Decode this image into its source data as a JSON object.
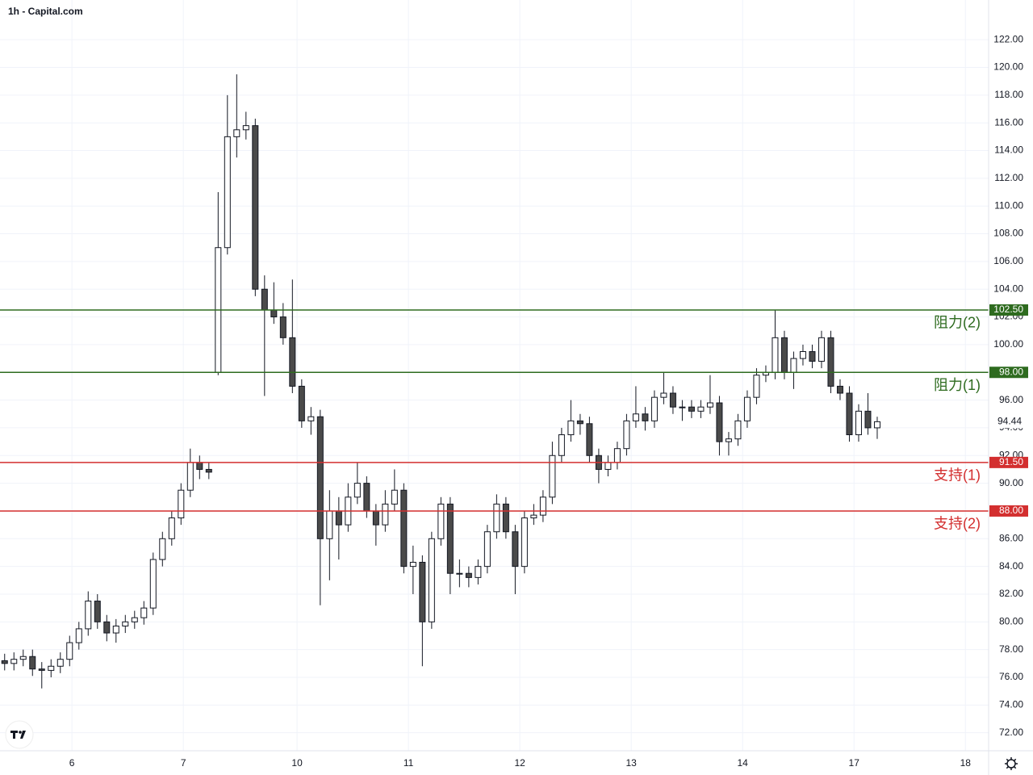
{
  "chart_data": {
    "type": "candlestick",
    "title": "1h - Capital.com",
    "x": [
      1,
      3,
      5,
      7,
      9,
      11,
      13,
      15,
      17,
      19,
      21,
      23,
      25,
      27,
      29,
      31,
      33,
      35,
      37,
      39,
      41,
      43,
      45,
      47,
      49,
      51,
      53,
      55,
      57,
      59,
      61,
      63,
      65,
      67,
      69,
      71,
      73,
      75,
      77,
      79,
      81,
      83,
      85,
      87,
      89,
      91,
      93,
      95,
      97,
      99,
      101,
      103,
      105,
      107,
      109,
      111,
      113,
      115,
      117,
      119,
      121,
      123,
      125,
      127,
      129,
      131,
      133,
      135,
      137,
      139,
      141,
      143,
      145,
      147,
      149,
      151,
      153,
      155,
      157,
      159,
      161,
      163,
      165,
      167,
      169,
      171,
      173,
      175,
      177,
      179,
      181,
      183,
      185,
      187,
      189
    ],
    "open": [
      77.2,
      77.0,
      77.3,
      77.5,
      76.6,
      76.5,
      76.8,
      77.3,
      78.5,
      79.5,
      81.5,
      80.0,
      79.2,
      79.7,
      80.0,
      80.3,
      81.0,
      84.5,
      86.0,
      87.5,
      89.5,
      91.5,
      91.0,
      98.0,
      107.0,
      115.0,
      115.5,
      115.8,
      104.0,
      102.5,
      102.0,
      100.5,
      97.0,
      94.5,
      94.8,
      86.0,
      88.0,
      87.0,
      89.0,
      90.0,
      88.0,
      87.0,
      88.5,
      89.5,
      84.0,
      84.3,
      80.0,
      86.0,
      88.5,
      83.5,
      83.5,
      83.2,
      84.0,
      86.5,
      88.5,
      86.5,
      84.0,
      87.5,
      87.7,
      89.0,
      92.0,
      93.5,
      94.5,
      94.3,
      92.0,
      91.0,
      91.5,
      92.5,
      94.5,
      95.0,
      94.5,
      96.2,
      96.5,
      95.5,
      95.5,
      95.2,
      95.5,
      95.8,
      93.0,
      93.2,
      94.5,
      96.2,
      97.8,
      98.0,
      100.5,
      98.0,
      99.0,
      99.5,
      98.8,
      100.5,
      97.0,
      96.5,
      93.5,
      95.2,
      94.0
    ],
    "high": [
      77.7,
      77.8,
      78.0,
      78.0,
      77.1,
      77.3,
      77.8,
      79.0,
      80.0,
      82.2,
      82.0,
      80.5,
      80.2,
      80.5,
      80.8,
      81.5,
      85.0,
      86.5,
      88.0,
      90.0,
      92.5,
      92.0,
      91.5,
      111.0,
      118.0,
      119.5,
      116.8,
      116.3,
      105.0,
      104.5,
      103.0,
      104.7,
      97.5,
      95.5,
      95.3,
      89.5,
      89.0,
      90.0,
      91.5,
      90.5,
      88.5,
      89.5,
      91.0,
      90.0,
      85.5,
      84.8,
      86.5,
      89.0,
      89.0,
      84.5,
      84.0,
      84.5,
      87.0,
      89.2,
      89.0,
      87.0,
      88.0,
      88.5,
      89.5,
      93.0,
      94.0,
      96.0,
      95.0,
      94.8,
      92.5,
      92.0,
      93.0,
      95.0,
      97.0,
      95.5,
      96.7,
      98.0,
      97.0,
      96.0,
      96.0,
      96.0,
      97.8,
      96.3,
      93.7,
      95.0,
      96.7,
      98.3,
      98.5,
      102.5,
      101.0,
      99.5,
      100.0,
      100.0,
      101.0,
      101.0,
      97.5,
      97.0,
      95.7,
      96.5,
      94.8
    ],
    "low": [
      76.5,
      76.5,
      76.8,
      76.1,
      75.2,
      76.0,
      76.3,
      76.8,
      78.0,
      79.0,
      79.5,
      78.6,
      78.5,
      79.2,
      79.5,
      79.8,
      80.5,
      84.0,
      85.5,
      87.0,
      89.0,
      90.3,
      90.3,
      97.8,
      106.5,
      113.5,
      114.8,
      103.5,
      96.3,
      101.5,
      100.0,
      96.5,
      94.0,
      93.5,
      81.2,
      83.0,
      84.5,
      86.5,
      88.5,
      87.5,
      85.5,
      86.5,
      88.0,
      83.5,
      82.0,
      76.8,
      79.5,
      85.5,
      82.0,
      82.5,
      82.5,
      82.7,
      83.5,
      86.0,
      86.0,
      82.0,
      83.5,
      87.0,
      87.2,
      88.5,
      91.5,
      93.0,
      93.5,
      91.5,
      90.0,
      90.5,
      91.0,
      92.0,
      94.0,
      93.8,
      94.0,
      95.7,
      95.0,
      94.5,
      94.7,
      94.7,
      95.0,
      92.0,
      92.0,
      92.7,
      94.0,
      95.7,
      97.3,
      97.5,
      97.5,
      96.8,
      98.5,
      98.3,
      98.3,
      96.5,
      96.0,
      93.0,
      93.0,
      93.5,
      93.2
    ],
    "close": [
      77.0,
      77.3,
      77.5,
      76.6,
      76.5,
      76.8,
      77.3,
      78.5,
      79.5,
      81.5,
      80.0,
      79.2,
      79.7,
      80.0,
      80.3,
      81.0,
      84.5,
      86.0,
      87.5,
      89.5,
      91.5,
      91.0,
      90.8,
      107.0,
      115.0,
      115.5,
      115.8,
      104.0,
      102.5,
      102.0,
      100.5,
      97.0,
      94.5,
      94.8,
      86.0,
      88.0,
      87.0,
      89.0,
      90.0,
      88.0,
      87.0,
      88.5,
      89.5,
      84.0,
      84.3,
      80.0,
      86.0,
      88.5,
      83.5,
      83.5,
      83.2,
      84.0,
      86.5,
      88.5,
      86.5,
      84.0,
      87.5,
      87.7,
      89.0,
      92.0,
      93.5,
      94.5,
      94.3,
      92.0,
      91.0,
      91.5,
      92.5,
      94.5,
      95.0,
      94.5,
      96.2,
      96.5,
      95.5,
      95.5,
      95.2,
      95.5,
      95.8,
      93.0,
      93.2,
      94.5,
      96.2,
      97.8,
      98.0,
      100.5,
      98.0,
      99.0,
      99.5,
      98.8,
      100.5,
      97.0,
      96.5,
      93.5,
      95.2,
      94.0,
      94.44
    ],
    "up_color": "#ffffff",
    "down_color": "#4a4a4a",
    "xlim": [
      0,
      213
    ],
    "xticks": [
      {
        "value": 15.5,
        "label": "6"
      },
      {
        "value": 39.5,
        "label": "7"
      },
      {
        "value": 64,
        "label": "10"
      },
      {
        "value": 88,
        "label": "11"
      },
      {
        "value": 112,
        "label": "12"
      },
      {
        "value": 136,
        "label": "13"
      },
      {
        "value": 160,
        "label": "14"
      },
      {
        "value": 184,
        "label": "17"
      },
      {
        "value": 208,
        "label": "18"
      }
    ],
    "ylim": [
      70.7,
      123.0
    ],
    "yticks": [
      {
        "value": 72,
        "label": "72.00"
      },
      {
        "value": 74,
        "label": "74.00"
      },
      {
        "value": 76,
        "label": "76.00"
      },
      {
        "value": 78,
        "label": "78.00"
      },
      {
        "value": 80,
        "label": "80.00"
      },
      {
        "value": 82,
        "label": "82.00"
      },
      {
        "value": 84,
        "label": "84.00"
      },
      {
        "value": 86,
        "label": "86.00"
      },
      {
        "value": 88,
        "label": "88.00"
      },
      {
        "value": 90,
        "label": "90.00"
      },
      {
        "value": 92,
        "label": "92.00"
      },
      {
        "value": 94,
        "label": "94.00"
      },
      {
        "value": 96,
        "label": "96.00"
      },
      {
        "value": 98,
        "label": "98.00"
      },
      {
        "value": 100,
        "label": "100.00"
      },
      {
        "value": 102,
        "label": "102.00"
      },
      {
        "value": 104,
        "label": "104.00"
      },
      {
        "value": 106,
        "label": "106.00"
      },
      {
        "value": 108,
        "label": "108.00"
      },
      {
        "value": 110,
        "label": "110.00"
      },
      {
        "value": 112,
        "label": "112.00"
      },
      {
        "value": 114,
        "label": "114.00"
      },
      {
        "value": 116,
        "label": "116.00"
      },
      {
        "value": 118,
        "label": "118.00"
      },
      {
        "value": 120,
        "label": "120.00"
      },
      {
        "value": 122,
        "label": "122.00"
      }
    ],
    "grid": true,
    "levels": [
      {
        "name": "阻力(2)",
        "value": 102.5,
        "value_label": "102.50",
        "color": "#2e6b1f"
      },
      {
        "name": "阻力(1)",
        "value": 98.0,
        "value_label": "98.00",
        "color": "#2e6b1f"
      },
      {
        "name": "支持(1)",
        "value": 91.5,
        "value_label": "91.50",
        "color": "#d32f2f"
      },
      {
        "name": "支持(2)",
        "value": 88.0,
        "value_label": "88.00",
        "color": "#d32f2f"
      }
    ]
  }
}
